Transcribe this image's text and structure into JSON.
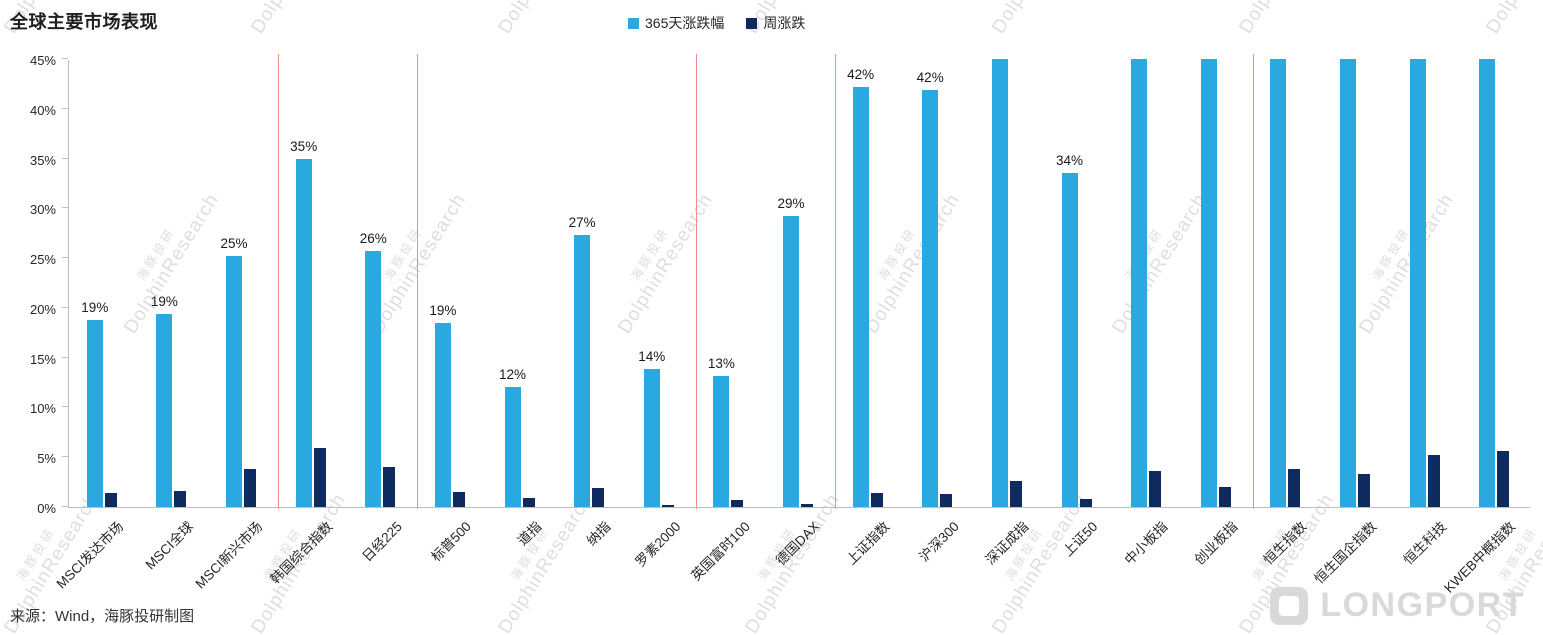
{
  "header": {
    "title": "全球主要市场表现"
  },
  "footer": {
    "source": "来源：Wind，海豚投研制图"
  },
  "logo": {
    "text": "LONGPORT"
  },
  "watermark": {
    "line1": "海豚投研",
    "line2": "DolphinResearch"
  },
  "colors": {
    "series_365d": "#29a9e0",
    "series_week": "#0e2a5f",
    "separator": "#f08d8d",
    "axis": "#bfbfbf",
    "text": "#262626"
  },
  "chart_data": {
    "type": "bar",
    "title": "全球主要市场表现",
    "legend_position": "top-center",
    "grid": false,
    "ylim": [
      0,
      45
    ],
    "yticks": [
      "0%",
      "5%",
      "10%",
      "15%",
      "20%",
      "25%",
      "30%",
      "35%",
      "40%",
      "45%"
    ],
    "categories": [
      "MSCI发达市场",
      "MSCI全球",
      "MSCI新兴市场",
      "韩国综合指数",
      "日经225",
      "标普500",
      "道指",
      "纳指",
      "罗素2000",
      "英国富时100",
      "德国DAX",
      "上证指数",
      "沪深300",
      "深证成指",
      "上证50",
      "中小板指",
      "创业板指",
      "恒生指数",
      "恒生国企指数",
      "恒生科技",
      "KWEB中概指数"
    ],
    "series": [
      {
        "name": "365天涨跌幅",
        "color": "#29a9e0",
        "values": [
          18.8,
          19.4,
          25.2,
          35.0,
          25.7,
          18.5,
          12.1,
          27.3,
          13.9,
          13.2,
          29.2,
          42.2,
          41.9,
          45,
          33.6,
          45,
          45,
          45,
          45,
          45,
          45
        ],
        "labels": [
          "19%",
          "19%",
          "25%",
          "35%",
          "26%",
          "19%",
          "12%",
          "27%",
          "14%",
          "13%",
          "29%",
          "42%",
          "42%",
          "",
          "34%",
          "",
          "",
          "",
          "",
          "",
          ""
        ]
      },
      {
        "name": "周涨跌",
        "color": "#0e2a5f",
        "values": [
          1.4,
          1.6,
          3.8,
          5.9,
          4.0,
          1.5,
          0.9,
          1.9,
          0.2,
          0.7,
          0.3,
          1.4,
          1.3,
          2.6,
          0.8,
          3.6,
          2.0,
          3.8,
          3.3,
          5.2,
          5.6
        ],
        "labels": [
          "",
          "",
          "",
          "",
          "",
          "",
          "",
          "",
          "",
          "",
          "",
          "",
          "",
          "",
          "",
          "",
          "",
          "",
          "",
          "",
          ""
        ]
      }
    ],
    "axis_clipped_indices": [
      13,
      15,
      16,
      17,
      18,
      19,
      20
    ],
    "separators_after": [
      2,
      4,
      8,
      10,
      16
    ]
  }
}
